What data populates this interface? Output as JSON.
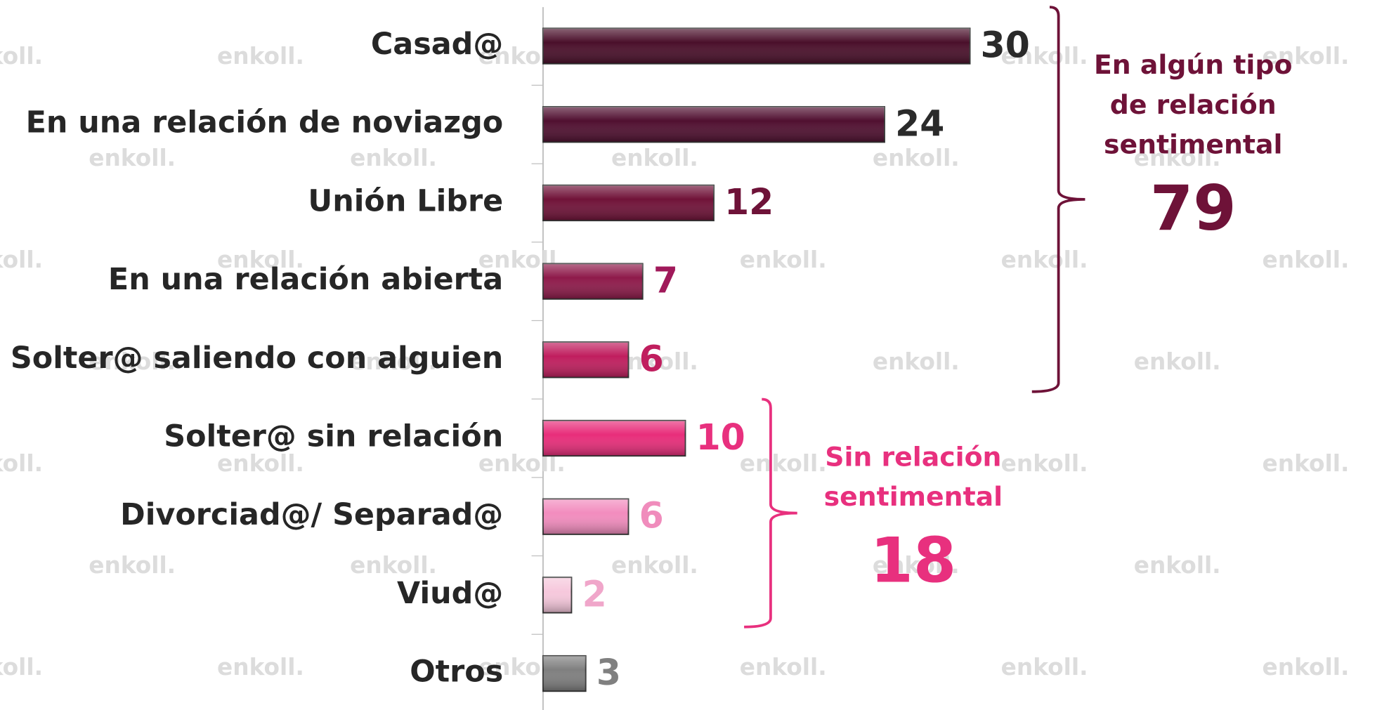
{
  "chart_data": {
    "type": "barh",
    "categories": [
      "Casad@",
      "En una relación de noviazgo",
      "Unión Libre",
      "En una relación abierta",
      "Solter@ saliendo con alguien",
      "Solter@ sin relación",
      "Divorciad@/ Separad@",
      "Viud@",
      "Otros"
    ],
    "values": [
      30,
      24,
      12,
      7,
      6,
      10,
      6,
      2,
      3
    ],
    "colors": [
      "#4a0f2a",
      "#500f30",
      "#701238",
      "#8e1a4a",
      "#c01e5e",
      "#e82d7a",
      "#f28cbe",
      "#f6c8dc",
      "#7f7f7f"
    ],
    "label_colors": [
      "#2a2a2a",
      "#2a2a2a",
      "#6e1238",
      "#a0195a",
      "#c01e5e",
      "#e8307e",
      "#f08cbc",
      "#f0a6ca",
      "#808080"
    ],
    "xlim": [
      0,
      30
    ],
    "groups": [
      {
        "label_lines": [
          "En algún tipo",
          "de relación",
          "sentimental"
        ],
        "value": 79,
        "color": "#6e1238",
        "from": 0,
        "to": 4
      },
      {
        "label_lines": [
          "Sin relación",
          "sentimental"
        ],
        "value": 18,
        "color": "#e8307e",
        "from": 5,
        "to": 7
      }
    ],
    "watermark": "enkoll."
  }
}
